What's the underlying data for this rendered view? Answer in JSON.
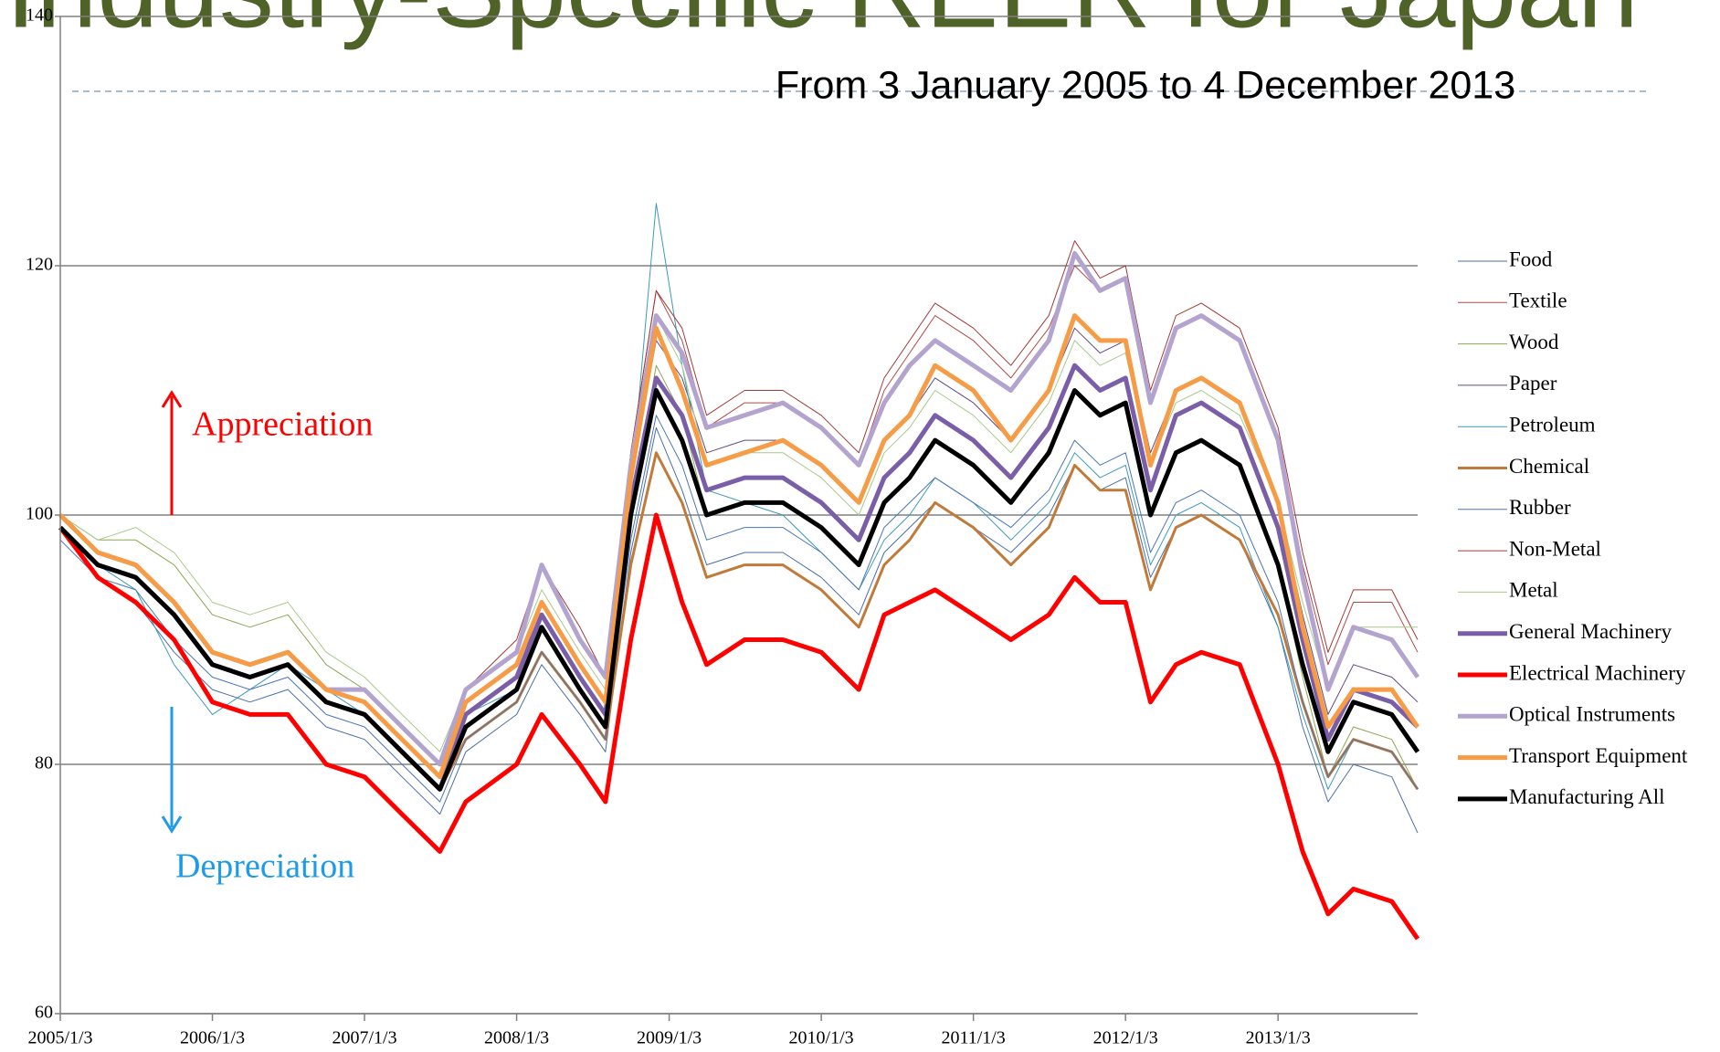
{
  "chart_data": {
    "type": "line",
    "title": "Industry-Specific REER for Japan",
    "subtitle": "From 3 January 2005 to 4 December 2013",
    "annotations": [
      "Appreciation",
      "Depreciation"
    ],
    "x": [
      "2005/1/3",
      "2005/4/3",
      "2005/7/3",
      "2005/10/3",
      "2006/1/3",
      "2006/4/3",
      "2006/7/3",
      "2006/10/3",
      "2007/1/3",
      "2007/4/3",
      "2007/7/3",
      "2007/9/3",
      "2008/1/3",
      "2008/3/3",
      "2008/6/3",
      "2008/8/3",
      "2008/10/3",
      "2008/12/3",
      "2009/2/3",
      "2009/4/3",
      "2009/7/3",
      "2009/10/3",
      "2010/1/3",
      "2010/4/3",
      "2010/6/3",
      "2010/8/3",
      "2010/10/3",
      "2011/1/3",
      "2011/4/3",
      "2011/7/3",
      "2011/9/3",
      "2011/11/3",
      "2012/1/3",
      "2012/3/3",
      "2012/5/3",
      "2012/7/3",
      "2012/10/3",
      "2013/1/3",
      "2013/3/3",
      "2013/5/3",
      "2013/7/3",
      "2013/10/3",
      "2013/12/4"
    ],
    "xlim": [
      "2005/1/3",
      "2013/12/4"
    ],
    "xticks": [
      "2005/1/3",
      "2006/1/3",
      "2007/1/3",
      "2008/1/3",
      "2009/1/3",
      "2010/1/3",
      "2011/1/3",
      "2012/1/3",
      "2013/1/3"
    ],
    "ylim": [
      60,
      140
    ],
    "yticks": [
      60,
      80,
      100,
      120,
      140
    ],
    "grid": true,
    "legend": "right",
    "series": [
      {
        "name": "Food",
        "color": "#4a6fa5",
        "linewidth": 1,
        "values": [
          98,
          95,
          93,
          89,
          86,
          85,
          86,
          83,
          82,
          79,
          76,
          81,
          84,
          88,
          84,
          81,
          97,
          107,
          102,
          96,
          97,
          97,
          95,
          92,
          97,
          99,
          101,
          99,
          97,
          100,
          104,
          102,
          103,
          95,
          99,
          100,
          98,
          91,
          83,
          77,
          80,
          79,
          74.5
        ]
      },
      {
        "name": "Textile",
        "color": "#b04a48",
        "linewidth": 1,
        "values": [
          100,
          97,
          96,
          93,
          89,
          88,
          89,
          86,
          85,
          82,
          79,
          86,
          89,
          96,
          90,
          87,
          105,
          118,
          114,
          107,
          109,
          109,
          107,
          104,
          110,
          113,
          116,
          114,
          111,
          115,
          120,
          118,
          119,
          109,
          115,
          116,
          114,
          106,
          96,
          88,
          93,
          93,
          89
        ]
      },
      {
        "name": "Wood",
        "color": "#8ea554",
        "linewidth": 1,
        "values": [
          100,
          98,
          98,
          96,
          92,
          91,
          92,
          88,
          86,
          83,
          80,
          85,
          88,
          92,
          87,
          84,
          100,
          112,
          108,
          100,
          101,
          101,
          99,
          96,
          101,
          103,
          106,
          104,
          101,
          105,
          110,
          108,
          109,
          100,
          105,
          106,
          104,
          96,
          87,
          79,
          83,
          82,
          78
        ]
      },
      {
        "name": "Paper",
        "color": "#5e4a82",
        "linewidth": 1,
        "values": [
          99,
          96,
          95,
          92,
          88,
          87,
          88,
          85,
          84,
          81,
          78,
          84,
          87,
          93,
          88,
          85,
          103,
          114,
          111,
          105,
          106,
          106,
          104,
          101,
          106,
          108,
          111,
          109,
          106,
          110,
          115,
          113,
          114,
          105,
          110,
          111,
          109,
          101,
          92,
          84,
          88,
          87,
          85
        ]
      },
      {
        "name": "Petroleum",
        "color": "#3c9ab8",
        "linewidth": 1,
        "values": [
          99,
          96,
          94,
          88,
          84,
          86,
          88,
          86,
          84,
          81,
          78,
          84,
          86,
          91,
          86,
          83,
          102,
          125,
          112,
          102,
          101,
          100,
          97,
          94,
          98,
          100,
          103,
          101,
          98,
          101,
          105,
          103,
          104,
          96,
          100,
          101,
          99,
          91,
          84,
          78,
          82,
          81,
          78
        ]
      },
      {
        "name": "Chemical",
        "color": "#c07a3a",
        "linewidth": 3,
        "values": [
          99,
          96,
          95,
          92,
          88,
          87,
          88,
          85,
          84,
          81,
          78,
          82,
          85,
          89,
          85,
          82,
          96,
          105,
          101,
          95,
          96,
          96,
          94,
          91,
          96,
          98,
          101,
          99,
          96,
          99,
          104,
          102,
          102,
          94,
          99,
          100,
          98,
          92,
          85,
          79,
          82,
          81,
          78
        ]
      },
      {
        "name": "Rubber",
        "color": "#4a76b8",
        "linewidth": 1,
        "values": [
          99,
          95,
          94,
          90,
          87,
          86,
          87,
          84,
          83,
          80,
          77,
          82,
          85,
          89,
          85,
          82,
          98,
          108,
          104,
          98,
          99,
          99,
          97,
          94,
          99,
          101,
          103,
          101,
          99,
          102,
          106,
          104,
          105,
          97,
          101,
          102,
          100,
          93,
          85,
          79,
          82,
          81,
          78
        ]
      },
      {
        "name": "Non-Metal",
        "color": "#a33a36",
        "linewidth": 1,
        "values": [
          100,
          97,
          96,
          93,
          89,
          88,
          89,
          86,
          85,
          82,
          79,
          86,
          90,
          96,
          91,
          87,
          105,
          118,
          115,
          108,
          110,
          110,
          108,
          105,
          111,
          114,
          117,
          115,
          112,
          116,
          122,
          119,
          120,
          110,
          116,
          117,
          115,
          107,
          97,
          89,
          94,
          94,
          90
        ]
      },
      {
        "name": "Metal",
        "color": "#a8c98a",
        "linewidth": 1,
        "values": [
          100,
          98,
          99,
          97,
          93,
          92,
          93,
          89,
          87,
          84,
          81,
          86,
          89,
          94,
          89,
          86,
          103,
          116,
          112,
          104,
          105,
          105,
          103,
          100,
          105,
          107,
          110,
          108,
          105,
          109,
          114,
          112,
          113,
          104,
          109,
          110,
          108,
          101,
          93,
          86,
          91,
          91,
          91
        ]
      },
      {
        "name": "General Machinery",
        "color": "#7a5fa8",
        "linewidth": 5,
        "values": [
          99,
          96,
          95,
          92,
          88,
          87,
          88,
          85,
          84,
          81,
          78,
          84,
          87,
          92,
          87,
          84,
          101,
          111,
          108,
          102,
          103,
          103,
          101,
          98,
          103,
          105,
          108,
          106,
          103,
          107,
          112,
          110,
          111,
          102,
          108,
          109,
          107,
          99,
          90,
          82,
          86,
          85,
          83
        ]
      },
      {
        "name": "Electrical Machinery",
        "color": "#ff0000",
        "linewidth": 5,
        "values": [
          99,
          95,
          93,
          90,
          85,
          84,
          84,
          80,
          79,
          76,
          73,
          77,
          80,
          84,
          80,
          77,
          90,
          100,
          93,
          88,
          90,
          90,
          89,
          86,
          92,
          93,
          94,
          92,
          90,
          92,
          95,
          93,
          93,
          85,
          88,
          89,
          88,
          80,
          73,
          68,
          70,
          69,
          66
        ]
      },
      {
        "name": "Optical Instruments",
        "color": "#b3a3cf",
        "linewidth": 5,
        "values": [
          100,
          97,
          96,
          93,
          89,
          88,
          89,
          86,
          86,
          83,
          80,
          86,
          89,
          96,
          90,
          87,
          104,
          116,
          113,
          107,
          108,
          109,
          107,
          104,
          109,
          112,
          114,
          112,
          110,
          114,
          121,
          118,
          119,
          109,
          115,
          116,
          114,
          106,
          95,
          86,
          91,
          90,
          87
        ]
      },
      {
        "name": "Transport Equipment",
        "color": "#f79c46",
        "linewidth": 5,
        "values": [
          100,
          97,
          96,
          93,
          89,
          88,
          89,
          86,
          85,
          82,
          79,
          85,
          88,
          93,
          88,
          85,
          103,
          115,
          110,
          104,
          105,
          106,
          104,
          101,
          106,
          108,
          112,
          110,
          106,
          110,
          116,
          114,
          114,
          104,
          110,
          111,
          109,
          101,
          91,
          83,
          86,
          86,
          83
        ]
      },
      {
        "name": "Manufacturing All",
        "color": "#000000",
        "linewidth": 5,
        "values": [
          99,
          96,
          95,
          92,
          88,
          87,
          88,
          85,
          84,
          81,
          78,
          83,
          86,
          91,
          86,
          83,
          100,
          110,
          106,
          100,
          101,
          101,
          99,
          96,
          101,
          103,
          106,
          104,
          101,
          105,
          110,
          108,
          109,
          100,
          105,
          106,
          104,
          96,
          88,
          81,
          85,
          84,
          81
        ]
      }
    ]
  }
}
